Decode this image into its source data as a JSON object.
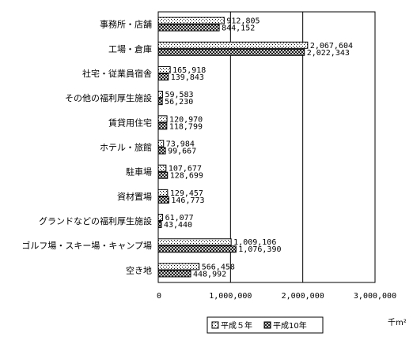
{
  "chart_data": {
    "type": "bar",
    "orientation": "horizontal",
    "categories": [
      "事務所・店舗",
      "工場・倉庫",
      "社宅・従業員宿舎",
      "その他の福利厚生施設",
      "賃貸用住宅",
      "ホテル・旅館",
      "駐車場",
      "資材置場",
      "グランドなどの福利厚生施設",
      "ゴルフ場・スキー場・キャンプ場",
      "空き地"
    ],
    "series": [
      {
        "name": "平成５年",
        "pattern": "dotted",
        "values": [
          912805,
          2067604,
          165918,
          59583,
          120970,
          73984,
          107677,
          129457,
          61077,
          1009106,
          566458
        ],
        "labels": [
          "912,805",
          "2,067,604",
          "165,918",
          "59,583",
          "120,970",
          "73,984",
          "107,677",
          "129,457",
          "61,077",
          "1,009,106",
          "566,458"
        ]
      },
      {
        "name": "平成10年",
        "pattern": "crosshatch",
        "values": [
          844152,
          2022343,
          139843,
          56230,
          118799,
          99667,
          128699,
          146773,
          43440,
          1076390,
          448992
        ],
        "labels": [
          "844,152",
          "2,022,343",
          "139,843",
          "56,230",
          "118,799",
          "99,667",
          "128,699",
          "146,773",
          "43,440",
          "1,076,390",
          "448,992"
        ]
      }
    ],
    "xlim": [
      0,
      3000000
    ],
    "x_ticks": [
      "0",
      "1,000,000",
      "2,000,000",
      "3,000,000"
    ],
    "x_tick_values": [
      0,
      1000000,
      2000000,
      3000000
    ],
    "unit_label": "千m²",
    "legend_position": "bottom",
    "grid": "vertical-lines"
  }
}
